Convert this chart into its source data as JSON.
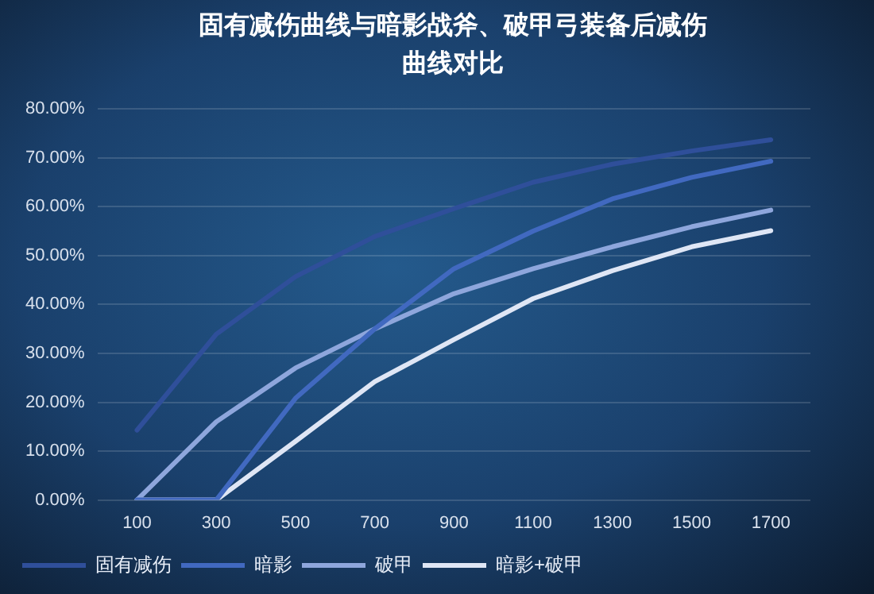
{
  "chart_data": {
    "type": "line",
    "title": "固有减伤曲线与暗影战斧、破甲弓装备后减伤曲线对比",
    "categories": [
      "100",
      "300",
      "500",
      "700",
      "900",
      "1100",
      "1300",
      "1500",
      "1700"
    ],
    "series": [
      {
        "name": "固有减伤",
        "color": "#2f4f9a",
        "values": [
          14.3,
          33.9,
          45.7,
          53.9,
          59.6,
          65,
          68.7,
          71.4,
          73.7
        ]
      },
      {
        "name": "暗影",
        "color": "#4169c0",
        "values": [
          0,
          0,
          20.8,
          35,
          47.3,
          55,
          61.6,
          66,
          69.3
        ]
      },
      {
        "name": "破甲",
        "color": "#8ea6dc",
        "values": [
          0,
          16,
          27,
          35,
          42.2,
          47.3,
          51.8,
          55.9,
          59.3
        ]
      },
      {
        "name": "暗影+破甲",
        "color": "#dfe6f5",
        "values": [
          0,
          0,
          12,
          24.2,
          32.8,
          41.2,
          46.9,
          51.8,
          55.1
        ]
      }
    ],
    "ylim": [
      0,
      80
    ],
    "yticks": [
      {
        "value": 0,
        "label": "0.00%"
      },
      {
        "value": 10,
        "label": "10.00%"
      },
      {
        "value": 20,
        "label": "20.00%"
      },
      {
        "value": 30,
        "label": "30.00%"
      },
      {
        "value": 40,
        "label": "40.00%"
      },
      {
        "value": 50,
        "label": "50.00%"
      },
      {
        "value": 60,
        "label": "60.00%"
      },
      {
        "value": 70,
        "label": "70.00%"
      },
      {
        "value": 80,
        "label": "80.00%"
      }
    ],
    "grid": "y",
    "legend": "bottom left",
    "marker": "none",
    "line_style": "solid"
  }
}
